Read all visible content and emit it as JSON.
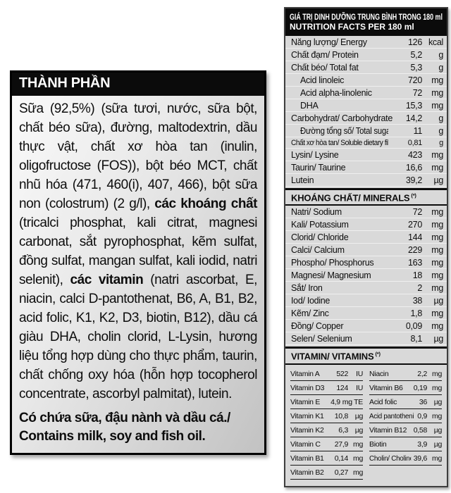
{
  "colors": {
    "label_black": "#0b0b0b",
    "panel_gray": "#d9d9d9",
    "row_separator": "#efefef",
    "text": "#0d0d0d"
  },
  "ingredients_panel": {
    "header": "THÀNH PHẦN",
    "body_segments": [
      {
        "text": "Sữa (92,5%) (sữa tươi, nước, sữa bột, chất béo sữa), đường, maltodextrin, dầu thực vật, chất xơ hòa tan (inulin, oligofructose (FOS)), bột béo MCT, chất nhũ hóa (471, 460(i), 407, 466), bột sữa non (colostrum) (2 g/l), ",
        "bold": false
      },
      {
        "text": "các khoáng chất",
        "bold": true
      },
      {
        "text": " (tricalci phosphat, kali citrat, magnesi carbonat, sắt pyrophosphat, kẽm sulfat, đồng sulfat, mangan sulfat, kali iodid, natri selenit), ",
        "bold": false
      },
      {
        "text": "các vitamin",
        "bold": true
      },
      {
        "text": " (natri ascorbat, E, niacin, calci D-pantothenat, B6, A, B1, B2, acid folic, K1, K2, D3, biotin, B12), dầu cá giàu DHA, cholin clorid, L-Lysin, hương liệu tổng hợp dùng cho thực phẩm, taurin, chất chống oxy hóa (hỗn hợp tocopherol concentrate, ascorbyl palmitat), lutein.",
        "bold": false
      }
    ],
    "allergen": "Có chứa sữa, đậu nành và dầu cá./ Contains milk, soy and fish oil."
  },
  "nutrition_panel": {
    "title_line1": "GIÁ TRỊ DINH DƯỠNG TRUNG BÌNH TRONG 180 ml",
    "title_line2": "NUTRITION FACTS PER 180 ml",
    "main_rows": [
      {
        "label": "Năng lượng/ Energy",
        "value": "126",
        "unit": "kcal"
      },
      {
        "label": "Chất đạm/ Protein",
        "value": "5,2",
        "unit": "g"
      },
      {
        "label": "Chất béo/ Total fat",
        "value": "5,3",
        "unit": "g"
      },
      {
        "label": "Acid linoleic",
        "value": "720",
        "unit": "mg",
        "indent": true
      },
      {
        "label": "Acid alpha-linolenic",
        "value": "72",
        "unit": "mg",
        "indent": true
      },
      {
        "label": "DHA",
        "value": "15,3",
        "unit": "mg",
        "indent": true
      },
      {
        "label": "Carbohydrat/ Carbohydrate",
        "value": "14,2",
        "unit": "g"
      },
      {
        "label": "Đường tổng số/ Total sugars",
        "value": "11",
        "unit": "g",
        "indent": true
      },
      {
        "label": "Chất xơ hòa tan/ Soluble dietary fiber",
        "value": "0,81",
        "unit": "g",
        "small": true
      },
      {
        "label": "Lysin/ Lysine",
        "value": "423",
        "unit": "mg"
      },
      {
        "label": "Taurin/ Taurine",
        "value": "16,6",
        "unit": "mg"
      },
      {
        "label": "Lutein",
        "value": "39,2",
        "unit": "µg"
      }
    ],
    "minerals": {
      "header": "KHOÁNG CHẤT/ MINERALS",
      "footnote_mark": "(*)",
      "rows": [
        {
          "label": "Natri/ Sodium",
          "value": "72",
          "unit": "mg"
        },
        {
          "label": "Kali/ Potassium",
          "value": "270",
          "unit": "mg"
        },
        {
          "label": "Clorid/ Chloride",
          "value": "144",
          "unit": "mg"
        },
        {
          "label": "Calci/ Calcium",
          "value": "229",
          "unit": "mg"
        },
        {
          "label": "Phospho/ Phosphorus",
          "value": "163",
          "unit": "mg"
        },
        {
          "label": "Magnesi/ Magnesium",
          "value": "18",
          "unit": "mg"
        },
        {
          "label": "Sắt/ Iron",
          "value": "2",
          "unit": "mg"
        },
        {
          "label": "Iod/ Iodine",
          "value": "38",
          "unit": "µg"
        },
        {
          "label": "Kẽm/ Zinc",
          "value": "1,8",
          "unit": "mg"
        },
        {
          "label": "Đồng/ Copper",
          "value": "0,09",
          "unit": "mg"
        },
        {
          "label": "Selen/ Selenium",
          "value": "8,1",
          "unit": "µg"
        }
      ]
    },
    "vitamins": {
      "header": "VITAMIN/ VITAMINS",
      "footnote_mark": "(*)",
      "left_rows": [
        {
          "label": "Vitamin A",
          "value": "522",
          "unit": "IU"
        },
        {
          "label": "Vitamin D3",
          "value": "124",
          "unit": "IU"
        },
        {
          "label": "Vitamin E",
          "value": "4,9",
          "unit": "mg TE"
        },
        {
          "label": "Vitamin K1",
          "value": "10,8",
          "unit": "µg"
        },
        {
          "label": "Vitamin K2",
          "value": "6,3",
          "unit": "µg"
        },
        {
          "label": "Vitamin C",
          "value": "27,9",
          "unit": "mg"
        },
        {
          "label": "Vitamin B1",
          "value": "0,14",
          "unit": "mg"
        },
        {
          "label": "Vitamin B2",
          "value": "0,27",
          "unit": "mg"
        }
      ],
      "right_rows": [
        {
          "label": "Niacin",
          "value": "2,2",
          "unit": "mg"
        },
        {
          "label": "Vitamin B6",
          "value": "0,19",
          "unit": "mg"
        },
        {
          "label": "Acid folic",
          "value": "36",
          "unit": "µg"
        },
        {
          "label": "Acid pantothenic",
          "value": "0,9",
          "unit": "mg",
          "small": true
        },
        {
          "label": "Vitamin B12",
          "value": "0,58",
          "unit": "µg"
        },
        {
          "label": "Biotin",
          "value": "3,9",
          "unit": "µg"
        },
        {
          "label": "Cholin/ Choline",
          "value": "39,6",
          "unit": "mg",
          "small": true
        }
      ]
    }
  }
}
